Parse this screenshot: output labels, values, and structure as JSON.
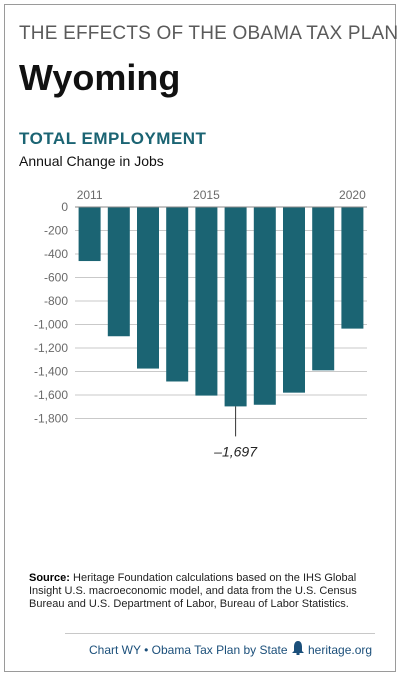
{
  "header": {
    "kicker": "THE EFFECTS OF THE OBAMA TAX PLAN",
    "state": "Wyoming"
  },
  "chart_data": {
    "type": "bar",
    "title": "TOTAL EMPLOYMENT",
    "subtitle": "Annual Change in Jobs",
    "categories": [
      "2011",
      "2012",
      "2013",
      "2014",
      "2015",
      "2016",
      "2017",
      "2018",
      "2019",
      "2020"
    ],
    "x_tick_labels": [
      "2011",
      "2015",
      "2020"
    ],
    "values": [
      -460,
      -1100,
      -1375,
      -1485,
      -1605,
      -1697,
      -1683,
      -1580,
      -1390,
      -1035
    ],
    "ylim": [
      -1900,
      0
    ],
    "yticks": [
      0,
      -200,
      -400,
      -600,
      -800,
      -1000,
      -1200,
      -1400,
      -1600,
      -1800
    ],
    "ytick_labels": [
      "0",
      "-200",
      "-400",
      "-600",
      "-800",
      "-1,000",
      "-1,200",
      "-1,400",
      "-1,600",
      "-1,800"
    ],
    "annotation": {
      "category": "2016",
      "label": "–1,697"
    },
    "grid": true,
    "bar_color": "#1b6473"
  },
  "source": {
    "label": "Source:",
    "text": "Heritage Foundation calculations based on the IHS Global Insight U.S. macroeconomic model, and data from the U.S. Census Bureau and U.S. Department of Labor, Bureau of Labor Statistics."
  },
  "footer": {
    "chart_id": "Chart WY • Obama Tax Plan by State",
    "site": "heritage.org",
    "bell_icon": "liberty-bell-icon"
  }
}
